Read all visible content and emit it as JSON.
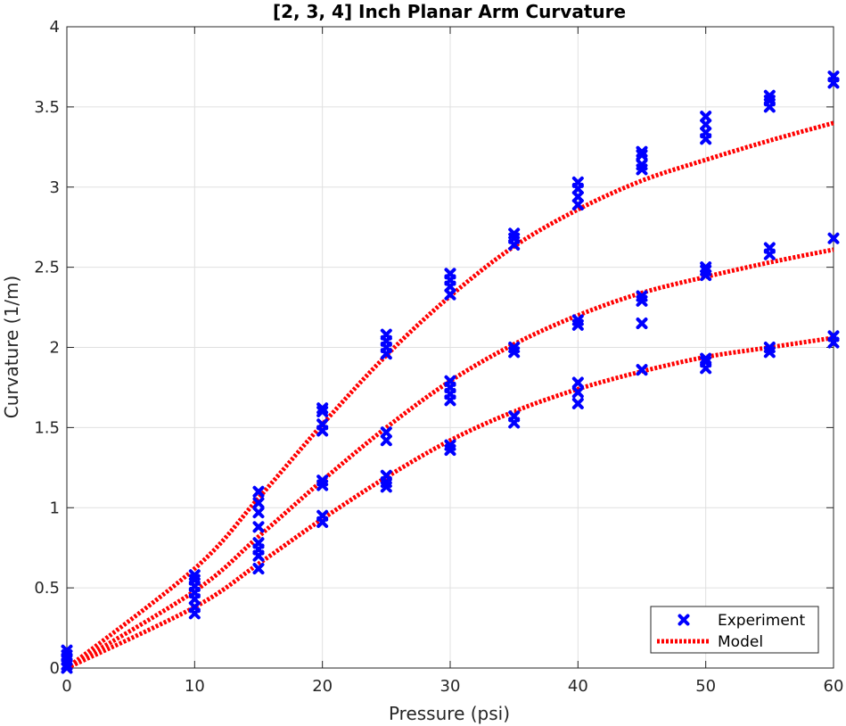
{
  "chart_data": {
    "type": "scatter",
    "title": "[2, 3, 4] Inch Planar Arm Curvature",
    "xlabel": "Pressure (psi)",
    "ylabel": "Curvature (1/m)",
    "xlim": [
      0,
      60
    ],
    "ylim": [
      0,
      4
    ],
    "xticks": [
      0,
      10,
      20,
      30,
      40,
      50,
      60
    ],
    "yticks": [
      0,
      0.5,
      1,
      1.5,
      2,
      2.5,
      3,
      3.5,
      4
    ],
    "xtick_labels": [
      "0",
      "10",
      "20",
      "30",
      "40",
      "50",
      "60"
    ],
    "ytick_labels": [
      "0",
      "0.5",
      "1",
      "1.5",
      "2",
      "2.5",
      "3",
      "3.5",
      "4"
    ],
    "grid": true,
    "legend_position": "bottom-right",
    "colors": {
      "experiment": "#0000ff",
      "model": "#ff0000",
      "grid": "#e0e0e0",
      "axis": "#262626"
    },
    "series": [
      {
        "name": "Experiment",
        "type": "scatter",
        "marker": "x",
        "points": [
          [
            0,
            0.0
          ],
          [
            0,
            0.02
          ],
          [
            0,
            0.05
          ],
          [
            0,
            0.08
          ],
          [
            0,
            0.11
          ],
          [
            10,
            0.34
          ],
          [
            10,
            0.38
          ],
          [
            10,
            0.43
          ],
          [
            10,
            0.47
          ],
          [
            10,
            0.51
          ],
          [
            10,
            0.55
          ],
          [
            10,
            0.58
          ],
          [
            15,
            0.62
          ],
          [
            15,
            0.7
          ],
          [
            15,
            0.74
          ],
          [
            15,
            0.78
          ],
          [
            15,
            0.88
          ],
          [
            15,
            0.97
          ],
          [
            15,
            1.03
          ],
          [
            15,
            1.1
          ],
          [
            20,
            0.91
          ],
          [
            20,
            0.95
          ],
          [
            20,
            1.14
          ],
          [
            20,
            1.17
          ],
          [
            20,
            1.48
          ],
          [
            20,
            1.52
          ],
          [
            20,
            1.6
          ],
          [
            20,
            1.62
          ],
          [
            25,
            1.13
          ],
          [
            25,
            1.16
          ],
          [
            25,
            1.2
          ],
          [
            25,
            1.42
          ],
          [
            25,
            1.47
          ],
          [
            25,
            1.96
          ],
          [
            25,
            2.0
          ],
          [
            25,
            2.04
          ],
          [
            25,
            2.08
          ],
          [
            30,
            1.36
          ],
          [
            30,
            1.39
          ],
          [
            30,
            1.67
          ],
          [
            30,
            1.71
          ],
          [
            30,
            1.75
          ],
          [
            30,
            1.79
          ],
          [
            30,
            2.33
          ],
          [
            30,
            2.38
          ],
          [
            30,
            2.42
          ],
          [
            30,
            2.46
          ],
          [
            35,
            1.53
          ],
          [
            35,
            1.57
          ],
          [
            35,
            1.97
          ],
          [
            35,
            2.0
          ],
          [
            35,
            2.64
          ],
          [
            35,
            2.68
          ],
          [
            35,
            2.71
          ],
          [
            40,
            1.65
          ],
          [
            40,
            1.72
          ],
          [
            40,
            1.78
          ],
          [
            40,
            2.14
          ],
          [
            40,
            2.17
          ],
          [
            40,
            2.89
          ],
          [
            40,
            2.94
          ],
          [
            40,
            2.99
          ],
          [
            40,
            3.03
          ],
          [
            45,
            1.86
          ],
          [
            45,
            2.15
          ],
          [
            45,
            2.29
          ],
          [
            45,
            2.32
          ],
          [
            45,
            3.11
          ],
          [
            45,
            3.14
          ],
          [
            45,
            3.2
          ],
          [
            45,
            3.22
          ],
          [
            50,
            1.87
          ],
          [
            50,
            1.91
          ],
          [
            50,
            1.93
          ],
          [
            50,
            2.45
          ],
          [
            50,
            2.48
          ],
          [
            50,
            2.5
          ],
          [
            50,
            3.3
          ],
          [
            50,
            3.34
          ],
          [
            50,
            3.39
          ],
          [
            50,
            3.44
          ],
          [
            55,
            1.97
          ],
          [
            55,
            2.0
          ],
          [
            55,
            2.58
          ],
          [
            55,
            2.62
          ],
          [
            55,
            3.5
          ],
          [
            55,
            3.54
          ],
          [
            55,
            3.57
          ],
          [
            60,
            2.03
          ],
          [
            60,
            2.07
          ],
          [
            60,
            2.68
          ],
          [
            60,
            3.65
          ],
          [
            60,
            3.69
          ]
        ]
      },
      {
        "name": "Model",
        "type": "line",
        "style": "dotted",
        "curves": [
          [
            [
              0,
              0
            ],
            [
              10,
              0.62
            ],
            [
              15,
              1.06
            ],
            [
              20,
              1.52
            ],
            [
              25,
              1.95
            ],
            [
              30,
              2.32
            ],
            [
              35,
              2.63
            ],
            [
              40,
              2.86
            ],
            [
              45,
              3.04
            ],
            [
              50,
              3.17
            ],
            [
              55,
              3.29
            ],
            [
              60,
              3.4
            ]
          ],
          [
            [
              0,
              0
            ],
            [
              10,
              0.48
            ],
            [
              15,
              0.82
            ],
            [
              20,
              1.17
            ],
            [
              25,
              1.5
            ],
            [
              30,
              1.79
            ],
            [
              35,
              2.02
            ],
            [
              40,
              2.2
            ],
            [
              45,
              2.34
            ],
            [
              50,
              2.44
            ],
            [
              55,
              2.53
            ],
            [
              60,
              2.61
            ]
          ],
          [
            [
              0,
              0
            ],
            [
              10,
              0.38
            ],
            [
              15,
              0.65
            ],
            [
              20,
              0.93
            ],
            [
              25,
              1.19
            ],
            [
              30,
              1.42
            ],
            [
              35,
              1.6
            ],
            [
              40,
              1.74
            ],
            [
              45,
              1.85
            ],
            [
              50,
              1.94
            ],
            [
              55,
              2.0
            ],
            [
              60,
              2.06
            ]
          ]
        ]
      }
    ]
  }
}
